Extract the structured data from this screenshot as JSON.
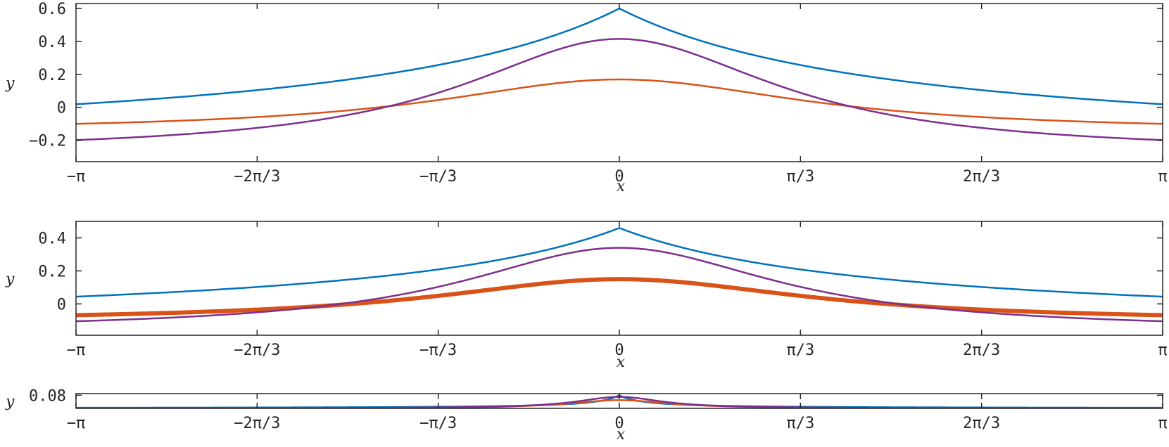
{
  "chart_data": [
    {
      "type": "line",
      "xlabel": "x",
      "ylabel": "y",
      "xlim": [
        -3.14159,
        3.14159
      ],
      "ylim": [
        -0.33,
        0.63
      ],
      "x_ticks": [
        -3.14159,
        -2.0944,
        -1.0472,
        0,
        1.0472,
        2.0944,
        3.14159
      ],
      "x_tick_labels": [
        "−π",
        "−2π/3",
        "−π/3",
        "0",
        "π/3",
        "2π/3",
        "π"
      ],
      "y_ticks": [
        -0.2,
        0,
        0.2,
        0.4,
        0.6
      ],
      "y_tick_labels": [
        "−0.2",
        "0",
        "0.2",
        "0.4",
        "0.6"
      ],
      "grid": false,
      "series": [
        {
          "color": "#0072BD",
          "width": 2.5,
          "model": "kink",
          "p": {
            "A": 0.89,
            "b": 0.6,
            "C": -0.29
          }
        },
        {
          "color": "#D95319",
          "width": 2.5,
          "model": "smooth",
          "p": {
            "A": 0.315,
            "b": 0.6,
            "C": -0.146
          }
        },
        {
          "color": "#7E2F8E",
          "width": 2.5,
          "model": "smooth",
          "p": {
            "A": 0.69,
            "b": 0.82,
            "C": -0.275
          }
        }
      ]
    },
    {
      "type": "line",
      "xlabel": "x",
      "ylabel": "y",
      "xlim": [
        -3.14159,
        3.14159
      ],
      "ylim": [
        -0.19,
        0.5
      ],
      "x_ticks": [
        -3.14159,
        -2.0944,
        -1.0472,
        0,
        1.0472,
        2.0944,
        3.14159
      ],
      "x_tick_labels": [
        "−π",
        "−2π/3",
        "−π/3",
        "0",
        "π/3",
        "2π/3",
        "π"
      ],
      "y_ticks": [
        0,
        0.2,
        0.4
      ],
      "y_tick_labels": [
        "0",
        "0.2",
        "0.4"
      ],
      "grid": false,
      "series": [
        {
          "color": "#0072BD",
          "width": 2.5,
          "model": "kink",
          "p": {
            "A": 0.62,
            "b": 0.65,
            "C": -0.16
          }
        },
        {
          "color": "#D95319",
          "width": 6,
          "model": "smooth",
          "p": {
            "A": 0.255,
            "b": 0.6,
            "C": -0.105
          }
        },
        {
          "color": "#7E2F8E",
          "width": 2.5,
          "model": "smooth",
          "p": {
            "A": 0.5,
            "b": 0.82,
            "C": -0.16
          }
        }
      ]
    },
    {
      "type": "line",
      "xlabel": "x",
      "ylabel": "y",
      "xlim": [
        -3.14159,
        3.14159
      ],
      "ylim": [
        0,
        0.09
      ],
      "x_ticks": [
        -3.14159,
        -2.0944,
        -1.0472,
        0,
        1.0472,
        2.0944,
        3.14159
      ],
      "x_tick_labels": [
        "−π",
        "−2π/3",
        "−π/3",
        "0",
        "π/3",
        "2π/3",
        "π"
      ],
      "y_ticks": [
        0.08
      ],
      "y_tick_labels": [
        "0.08"
      ],
      "grid": false,
      "series": [
        {
          "color": "#0072BD",
          "width": 2.5,
          "model": "kink",
          "p": {
            "A": 0.08,
            "b": 7,
            "C": 0
          }
        },
        {
          "color": "#D95319",
          "width": 2.5,
          "model": "smooth",
          "p": {
            "A": 0.05,
            "b": 8,
            "C": 0
          }
        },
        {
          "color": "#7E2F8E",
          "width": 2.5,
          "model": "smooth",
          "p": {
            "A": 0.07,
            "b": 11,
            "C": 0
          }
        }
      ]
    }
  ]
}
